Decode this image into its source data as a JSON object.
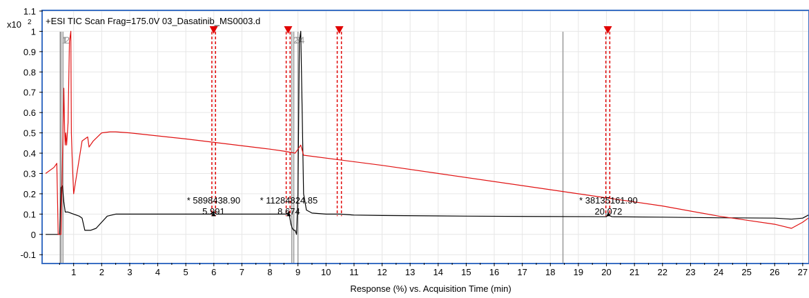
{
  "chart_data": {
    "type": "line",
    "title": "+ESI TIC Scan Frag=175.0V 03_Dasatinib_MS0003.d",
    "y_multiplier": "x10",
    "y_exponent": "2",
    "xlabel": "Response (%) vs. Acquisition Time (min)",
    "xlim": [
      -0.1,
      27.2
    ],
    "ylim": [
      -0.14,
      1.1
    ],
    "x_ticks": [
      1,
      2,
      3,
      4,
      5,
      6,
      7,
      8,
      9,
      10,
      11,
      12,
      13,
      14,
      15,
      16,
      17,
      18,
      19,
      20,
      21,
      22,
      23,
      24,
      25,
      26,
      27
    ],
    "y_ticks": [
      -0.1,
      0,
      0.1,
      0.2,
      0.3,
      0.4,
      0.5,
      0.6,
      0.7,
      0.8,
      0.9,
      1,
      1.1
    ],
    "grid": true,
    "series": [
      {
        "color": "#000000",
        "x": [
          0.0,
          0.4,
          0.5,
          0.55,
          0.6,
          0.65,
          0.7,
          0.8,
          1.0,
          1.2,
          1.3,
          1.4,
          1.6,
          1.8,
          2.0,
          2.2,
          2.5,
          3.0,
          4.0,
          5.0,
          5.9,
          5.991,
          6.1,
          7.0,
          8.0,
          8.6,
          8.674,
          8.75,
          8.8,
          8.85,
          8.9,
          8.95,
          9.0,
          9.05,
          9.1,
          9.15,
          9.2,
          9.3,
          9.5,
          10.0,
          10.5,
          11.0,
          12.0,
          15.0,
          18.0,
          20.0,
          20.072,
          20.2,
          22.0,
          24.0,
          26.0,
          26.6,
          27.0,
          27.2
        ],
        "y": [
          0.0,
          0.0,
          0.0,
          0.23,
          0.24,
          0.16,
          0.11,
          0.11,
          0.1,
          0.09,
          0.08,
          0.02,
          0.02,
          0.03,
          0.06,
          0.09,
          0.1,
          0.1,
          0.1,
          0.1,
          0.1,
          0.11,
          0.1,
          0.1,
          0.1,
          0.1,
          0.11,
          0.05,
          0.03,
          0.02,
          0.02,
          0.0,
          0.2,
          0.95,
          1.0,
          0.6,
          0.2,
          0.12,
          0.105,
          0.1,
          0.1,
          0.095,
          0.093,
          0.09,
          0.088,
          0.087,
          0.095,
          0.087,
          0.085,
          0.082,
          0.08,
          0.075,
          0.08,
          0.095
        ]
      },
      {
        "color": "#e01010",
        "x": [
          0.0,
          0.3,
          0.35,
          0.4,
          0.45,
          0.5,
          0.55,
          0.62,
          0.65,
          0.68,
          0.7,
          0.72,
          0.75,
          0.8,
          0.85,
          0.9,
          0.92,
          0.95,
          1.0,
          1.3,
          1.5,
          1.55,
          1.7,
          2.0,
          2.3,
          2.5,
          3.0,
          5.0,
          8.0,
          8.5,
          8.9,
          9.0,
          9.1,
          9.2,
          12.0,
          18.0,
          22.0,
          24.0,
          25.0,
          26.0,
          26.6,
          27.0,
          27.2
        ],
        "y": [
          0.3,
          0.33,
          0.34,
          0.35,
          0.0,
          0.0,
          0.0,
          0.5,
          0.72,
          0.5,
          0.44,
          0.5,
          0.44,
          0.55,
          0.95,
          1.0,
          0.5,
          0.36,
          0.2,
          0.46,
          0.48,
          0.43,
          0.46,
          0.5,
          0.505,
          0.505,
          0.5,
          0.47,
          0.42,
          0.41,
          0.4,
          0.42,
          0.44,
          0.39,
          0.34,
          0.22,
          0.14,
          0.09,
          0.07,
          0.05,
          0.03,
          0.06,
          0.08
        ]
      }
    ],
    "gray_markers": [
      {
        "x": 0.52,
        "label": "1",
        "label_color": "#999999"
      },
      {
        "x": 0.55,
        "label": "1",
        "label_color": "#999999"
      },
      {
        "x": 0.62,
        "label": "2",
        "label_color": "#999999"
      },
      {
        "x": 8.78,
        "label": "2",
        "label_color": "#999999"
      },
      {
        "x": 8.85,
        "label": "3",
        "label_color": "#999999"
      },
      {
        "x": 9.0,
        "label": "4",
        "label_color": "#999999"
      },
      {
        "x": 18.45,
        "label": "",
        "label_color": "#999999"
      }
    ],
    "red_markers": [
      {
        "x1": 5.93,
        "x2": 6.06
      },
      {
        "x1": 8.58,
        "x2": 8.72
      },
      {
        "x1": 10.4,
        "x2": 10.55
      },
      {
        "x1": 19.98,
        "x2": 20.12
      }
    ],
    "peak_labels": [
      {
        "x": 5.991,
        "area": "* 5898438.90",
        "time": "5.991"
      },
      {
        "x": 8.674,
        "area": "* 11284824.85",
        "time": "8.674"
      },
      {
        "x": 20.072,
        "area": "* 38135161.90",
        "time": "20.072"
      }
    ]
  }
}
